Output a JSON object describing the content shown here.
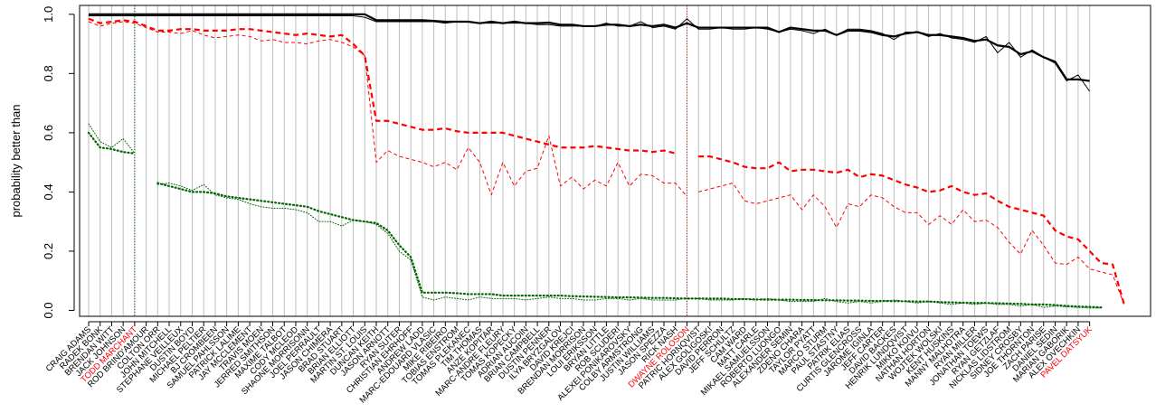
{
  "chart_data": {
    "type": "line",
    "ylabel": "probability better than",
    "ylim": [
      -0.02,
      1.03
    ],
    "yticks": [
      0.0,
      0.2,
      0.4,
      0.6,
      0.8,
      1.0
    ],
    "ytick_labels": [
      "0.0",
      "0.2",
      "0.4",
      "0.6",
      "0.8",
      "1.0"
    ],
    "grid": "vertical lines at every category",
    "colors": {
      "black": "#000000",
      "red": "#ff0000",
      "green": "#006400",
      "grid": "#bebebe"
    },
    "highlighted": [
      "TODD MARCHANT",
      "DWAYNE ROLOSON",
      "PAVEL DATSYUK"
    ],
    "reference_lines": [
      {
        "category": "TODD MARCHANT",
        "color": "#006400",
        "style": "dotted"
      },
      {
        "category": "DWAYNE ROLOSON",
        "color": "#ff0000",
        "style": "dotted"
      }
    ],
    "categories": [
      "CRAIG ADAMS",
      "RADEK BONK",
      "BRENDAN WITT",
      "JACK JOHNSON",
      "TODD MARCHANT",
      "ROD BRIND'AMOUR",
      "COLTON ORR",
      "JOHN MITCHELL",
      "STEPHANE VEILLEUX",
      "DUSTIN BOYD",
      "MICHAEL PELTIER",
      "BJ CROMBEEN",
      "SAMUEL PAHLSSON",
      "PATRICK LALIME",
      "JAY MCCLEMENT",
      "TRAVIS MOEN",
      "JERRED SMITHSON",
      "MAXIME TALBOT",
      "CODY MCLEOD",
      "SHAONE MORRISONN",
      "JOEL PERRAULT",
      "JASON CHIMERA",
      "BRAD STUART",
      "BRIAN ELLIOTT",
      "MARTIN ST. LOUIS",
      "DUNCAN KEITH",
      "JASON ARNOTT",
      "RYAN SUTER",
      "CHRISTIAN EHRHOFF",
      "ANDREW LADD",
      "MARC-EDOUARD VLASIC",
      "MIKE RIBEIRO",
      "TOBIAS ENSTROM",
      "TOMAS PLEKANEC",
      "TIM THOMAS",
      "ANZE KOPITAR",
      "MARC-ANDRE FLEURY",
      "TOMAS KOPECKY",
      "ADRIAN AUCOIN",
      "BRIAN CAMPBELL",
      "DUSTIN PENNER",
      "ILYA BRYZGALOV",
      "DAVID KREJCI",
      "BRENDAN MORRISON",
      "LOUI ERIKSSON",
      "BRYAN LITTLE",
      "ROB SCUDERI",
      "ALEXEI PONIKAROVSKY",
      "COLBY ARMSTRONG",
      "JUSTIN WILLIAMS",
      "JASON SPEZZA",
      "RICK NASH",
      "DWAYNE ROLOSON",
      "PATRIC HORNQVIST",
      "ALEX GOLIGOSKI",
      "DAVID PERRON",
      "JEFF SCHULTZ",
      "CAM WARD",
      "MATT CARLE",
      "MIKAEL SAMUELSSON",
      "ROBERTO LUONGO",
      "ALEXANDER SEMIN",
      "ZDENO CHARA",
      "TAYLOR PYATT",
      "MARCO STURM",
      "PAUL STASTNY",
      "PATRIK ELIAS",
      "CURTIS GLENCROSS",
      "JAROME IGINLA",
      "JEFF CARTER",
      "DAVID BACKES",
      "HENRIK LUNDQVIST",
      "MIKKO KOIVU",
      "NATHAN HORTON",
      "WOJTEK WOLSKI",
      "KENT HUSKINS",
      "MANNY MALHOTRA",
      "RYAN MILLER",
      "JONATHAN TOEWS",
      "RYAN GETZLAF",
      "NICKLAS LIDSTROM",
      "SIDNEY CROSBY",
      "JOE THORNTON",
      "ZACH PARISE",
      "DANIEL SEDIN",
      "MARIAN GABORIK",
      "ALEX OVECHKIN",
      "PAVEL DATSYUK"
    ],
    "series": [
      {
        "name": "",
        "color": "#000000",
        "style": "solid-thick",
        "segments": [
          [
            0,
            [
              1.0,
              1.0,
              1.0,
              1.0,
              1.0,
              1.0,
              1.0,
              1.0,
              1.0,
              1.0,
              1.0,
              1.0,
              1.0,
              1.0,
              1.0,
              1.0,
              1.0,
              1.0,
              1.0,
              1.0,
              1.0,
              1.0,
              1.0,
              1.0,
              1.0,
              0.98,
              0.98,
              0.98,
              0.98,
              0.98,
              0.978,
              0.975,
              0.975,
              0.975,
              0.97,
              0.975,
              0.97,
              0.975,
              0.97,
              0.97,
              0.972,
              0.965,
              0.965,
              0.96,
              0.96,
              0.965,
              0.965,
              0.96,
              0.965,
              0.96,
              0.965,
              0.955,
              0.97,
              0.955,
              0.955,
              0.955,
              0.955,
              0.955,
              0.955,
              0.955,
              0.94,
              0.955,
              0.95,
              0.945,
              0.945,
              0.93,
              0.945,
              0.945,
              0.94,
              0.93,
              0.925,
              0.935,
              0.94,
              0.93,
              0.93,
              0.925,
              0.92,
              0.91,
              0.915,
              0.895,
              0.89,
              0.865,
              0.875,
              0.855,
              0.84,
              0.78,
              0.78,
              0.775
            ]
          ]
        ]
      },
      {
        "name": "",
        "color": "#000000",
        "style": "solid-thin",
        "segments": [
          [
            0,
            [
              0.995,
              0.995,
              0.995,
              0.995,
              0.995,
              0.995,
              0.995,
              0.995,
              0.995,
              0.995,
              0.995,
              0.995,
              0.995,
              0.995,
              0.995,
              0.995,
              0.995,
              0.995,
              0.995,
              0.995,
              0.995,
              0.995,
              0.995,
              0.995,
              0.99,
              0.975,
              0.975,
              0.975,
              0.975,
              0.975,
              0.975,
              0.97,
              0.975,
              0.975,
              0.97,
              0.97,
              0.97,
              0.97,
              0.97,
              0.965,
              0.965,
              0.96,
              0.96,
              0.96,
              0.96,
              0.97,
              0.96,
              0.96,
              0.975,
              0.955,
              0.96,
              0.95,
              0.985,
              0.95,
              0.95,
              0.955,
              0.95,
              0.95,
              0.955,
              0.95,
              0.94,
              0.95,
              0.945,
              0.935,
              0.95,
              0.93,
              0.95,
              0.95,
              0.945,
              0.935,
              0.915,
              0.94,
              0.94,
              0.925,
              0.935,
              0.92,
              0.915,
              0.905,
              0.925,
              0.87,
              0.905,
              0.855,
              0.88,
              0.855,
              0.835,
              0.775,
              0.795,
              0.74
            ]
          ]
        ]
      },
      {
        "name": "",
        "color": "#ff0000",
        "style": "dashed-thick",
        "segments": [
          [
            0,
            [
              0.985,
              0.97,
              0.975,
              0.98,
              0.975,
              0.96,
              0.945,
              0.945,
              0.95,
              0.95,
              0.945,
              0.945,
              0.945,
              0.95,
              0.95,
              0.945,
              0.94,
              0.935,
              0.93,
              0.935,
              0.93,
              0.925,
              0.93,
              0.9,
              0.86,
              0.64,
              0.64,
              0.63,
              0.62,
              0.61,
              0.61,
              0.615,
              0.605,
              0.6,
              0.6,
              0.6,
              0.6,
              0.59,
              0.58,
              0.57,
              0.56,
              0.55,
              0.55,
              0.55,
              0.555,
              0.55,
              0.545,
              0.54,
              0.54,
              0.535,
              0.54,
              0.53
            ]
          ],
          [
            53,
            [
              0.52,
              0.52,
              0.51,
              0.5,
              0.485,
              0.48,
              0.48,
              0.5,
              0.47,
              0.475,
              0.475,
              0.47,
              0.465,
              0.475,
              0.45,
              0.46,
              0.455,
              0.44,
              0.425,
              0.415,
              0.4,
              0.405,
              0.42,
              0.4,
              0.39,
              0.395,
              0.37,
              0.35,
              0.34,
              0.33,
              0.32,
              0.27,
              0.25,
              0.24,
              0.2,
              0.16,
              0.155,
              0.02
            ]
          ]
        ]
      },
      {
        "name": "",
        "color": "#ff0000",
        "style": "dashed-thin",
        "segments": [
          [
            0,
            [
              0.975,
              0.96,
              0.97,
              0.975,
              0.97,
              0.955,
              0.94,
              0.94,
              0.935,
              0.945,
              0.93,
              0.92,
              0.925,
              0.93,
              0.925,
              0.91,
              0.915,
              0.905,
              0.905,
              0.9,
              0.91,
              0.915,
              0.905,
              0.89,
              0.86,
              0.5,
              0.54,
              0.52,
              0.51,
              0.5,
              0.485,
              0.5,
              0.475,
              0.55,
              0.5,
              0.39,
              0.5,
              0.42,
              0.47,
              0.48,
              0.59,
              0.42,
              0.45,
              0.41,
              0.44,
              0.42,
              0.5,
              0.42,
              0.46,
              0.455,
              0.43,
              0.43,
              0.385
            ]
          ],
          [
            53,
            [
              0.4,
              0.41,
              0.42,
              0.43,
              0.37,
              0.36,
              0.37,
              0.38,
              0.39,
              0.34,
              0.39,
              0.35,
              0.28,
              0.36,
              0.35,
              0.39,
              0.38,
              0.35,
              0.33,
              0.33,
              0.29,
              0.32,
              0.29,
              0.34,
              0.3,
              0.305,
              0.28,
              0.23,
              0.19,
              0.27,
              0.22,
              0.16,
              0.155,
              0.18,
              0.14,
              0.13,
              0.12,
              0.02
            ]
          ]
        ]
      },
      {
        "name": "",
        "color": "#006400",
        "style": "dotted-thick",
        "segments": [
          [
            0,
            [
              0.6,
              0.55,
              0.545,
              0.535,
              0.53
            ]
          ],
          [
            6,
            [
              0.43,
              0.42,
              0.41,
              0.4,
              0.4,
              0.395,
              0.385,
              0.38,
              0.375,
              0.37,
              0.365,
              0.36,
              0.355,
              0.35,
              0.335,
              0.325,
              0.315,
              0.305,
              0.3,
              0.295,
              0.27,
              0.22,
              0.18,
              0.06,
              0.06,
              0.06,
              0.058,
              0.055,
              0.055,
              0.055,
              0.05,
              0.05,
              0.05,
              0.05,
              0.05,
              0.05,
              0.048,
              0.047,
              0.046,
              0.045,
              0.044,
              0.044,
              0.043,
              0.042,
              0.042,
              0.041,
              0.04,
              0.04,
              0.04,
              0.04,
              0.038,
              0.038,
              0.037,
              0.036,
              0.036,
              0.036,
              0.035,
              0.035,
              0.034,
              0.034,
              0.033,
              0.033,
              0.032,
              0.032,
              0.031,
              0.031,
              0.03,
              0.03,
              0.028,
              0.027,
              0.026,
              0.025,
              0.025,
              0.024,
              0.023,
              0.022,
              0.02,
              0.02,
              0.018,
              0.015,
              0.013,
              0.012,
              0.01
            ]
          ]
        ]
      },
      {
        "name": "",
        "color": "#006400",
        "style": "dotted-thin",
        "segments": [
          [
            0,
            [
              0.63,
              0.57,
              0.55,
              0.58,
              0.53
            ]
          ],
          [
            6,
            [
              0.425,
              0.43,
              0.42,
              0.405,
              0.425,
              0.39,
              0.38,
              0.375,
              0.36,
              0.35,
              0.345,
              0.345,
              0.34,
              0.33,
              0.3,
              0.3,
              0.285,
              0.305,
              0.3,
              0.29,
              0.26,
              0.2,
              0.17,
              0.045,
              0.035,
              0.045,
              0.04,
              0.035,
              0.045,
              0.04,
              0.04,
              0.04,
              0.035,
              0.04,
              0.045,
              0.04,
              0.04,
              0.035,
              0.035,
              0.04,
              0.04,
              0.035,
              0.04,
              0.035,
              0.035,
              0.035,
              0.04,
              0.04,
              0.035,
              0.035,
              0.035,
              0.04,
              0.035,
              0.04,
              0.035,
              0.03,
              0.03,
              0.03,
              0.04,
              0.03,
              0.025,
              0.03,
              0.025,
              0.03,
              0.035,
              0.03,
              0.025,
              0.03,
              0.025,
              0.02,
              0.025,
              0.02,
              0.025,
              0.02,
              0.02,
              0.015,
              0.02,
              0.01,
              0.015,
              0.012,
              0.01,
              0.008,
              0.008
            ]
          ]
        ]
      }
    ]
  }
}
